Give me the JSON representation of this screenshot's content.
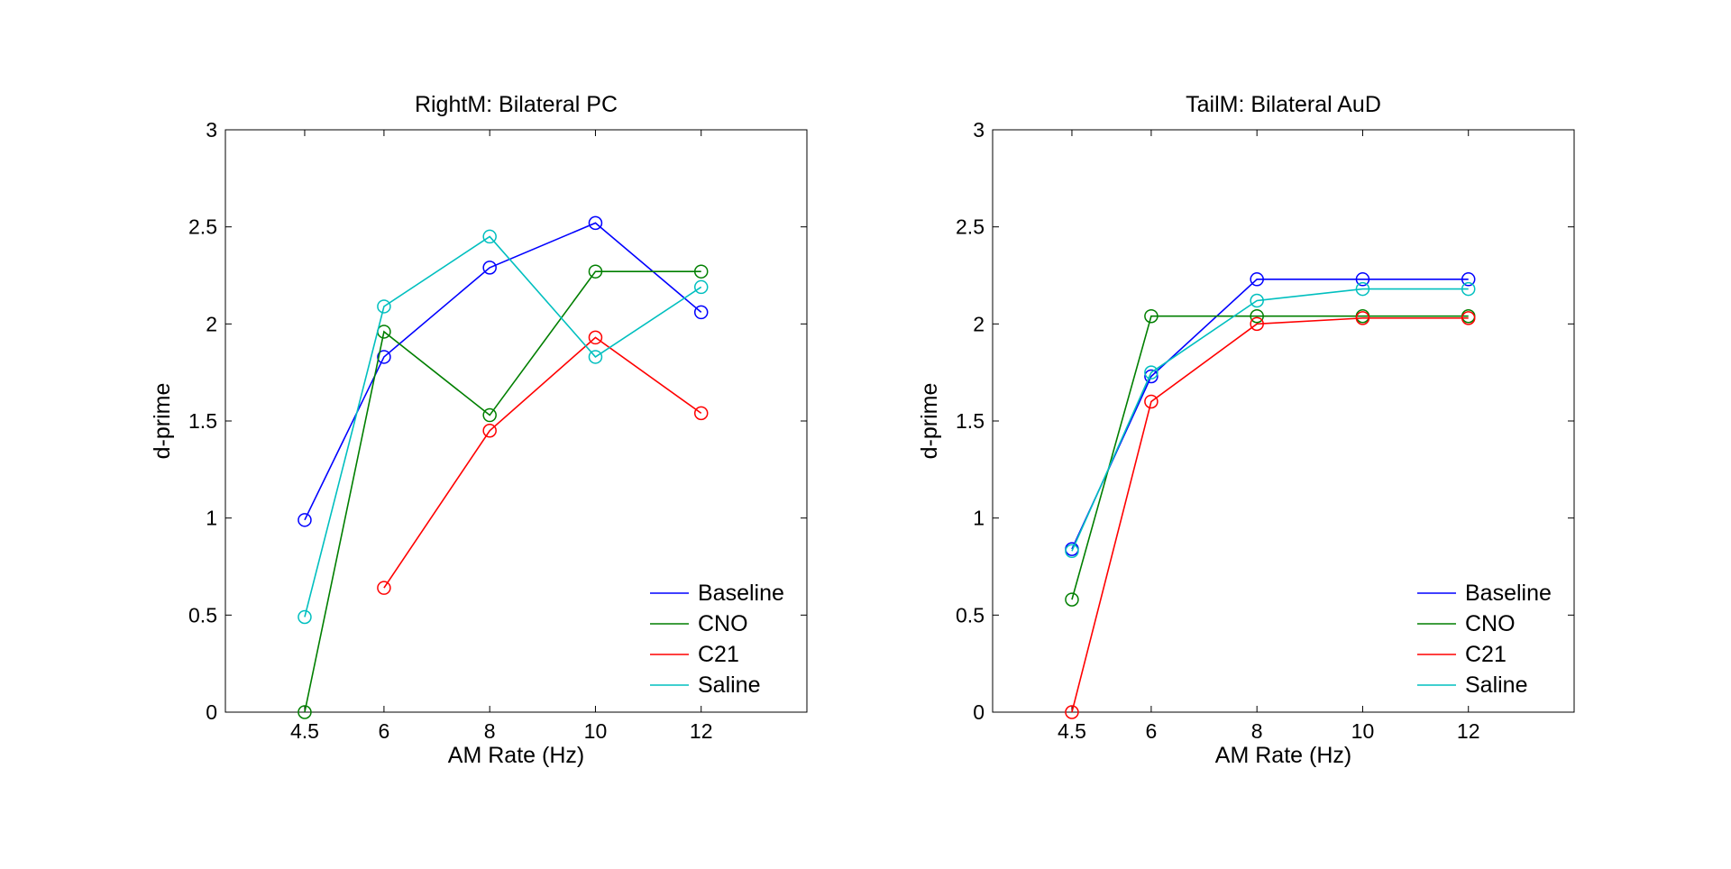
{
  "chart_data": [
    {
      "type": "line",
      "title": "RightM: Bilateral PC",
      "xlabel": "AM Rate (Hz)",
      "ylabel": "d-prime",
      "xlim": [
        3,
        14
      ],
      "ylim": [
        0,
        3
      ],
      "xticks": [
        4.5,
        6,
        8,
        10,
        12
      ],
      "xtick_labels": [
        "4.5",
        "6",
        "8",
        "10",
        "12"
      ],
      "yticks": [
        0,
        0.5,
        1,
        1.5,
        2,
        2.5,
        3
      ],
      "ytick_labels": [
        "0",
        "0.5",
        "1",
        "1.5",
        "2",
        "2.5",
        "3"
      ],
      "grid": false,
      "legend": "bottom-right",
      "x": [
        4.5,
        6,
        8,
        10,
        12
      ],
      "series": [
        {
          "name": "Baseline",
          "color": "#0000ff",
          "values": [
            0.99,
            1.83,
            2.29,
            2.52,
            2.06
          ]
        },
        {
          "name": "CNO",
          "color": "#007f00",
          "values": [
            0.0,
            1.96,
            1.53,
            2.27,
            2.27
          ]
        },
        {
          "name": "C21",
          "color": "#ff0000",
          "values": [
            null,
            0.64,
            1.45,
            1.93,
            1.54
          ]
        },
        {
          "name": "Saline",
          "color": "#00bfbf",
          "values": [
            0.49,
            2.09,
            2.45,
            1.83,
            2.19
          ]
        }
      ]
    },
    {
      "type": "line",
      "title": "TailM: Bilateral AuD",
      "xlabel": "AM Rate (Hz)",
      "ylabel": "d-prime",
      "xlim": [
        3,
        14
      ],
      "ylim": [
        0,
        3
      ],
      "xticks": [
        4.5,
        6,
        8,
        10,
        12
      ],
      "xtick_labels": [
        "4.5",
        "6",
        "8",
        "10",
        "12"
      ],
      "yticks": [
        0,
        0.5,
        1,
        1.5,
        2,
        2.5,
        3
      ],
      "ytick_labels": [
        "0",
        "0.5",
        "1",
        "1.5",
        "2",
        "2.5",
        "3"
      ],
      "grid": false,
      "legend": "bottom-right",
      "x": [
        4.5,
        6,
        8,
        10,
        12
      ],
      "series": [
        {
          "name": "Baseline",
          "color": "#0000ff",
          "values": [
            0.84,
            1.73,
            2.23,
            2.23,
            2.23
          ]
        },
        {
          "name": "CNO",
          "color": "#007f00",
          "values": [
            0.58,
            2.04,
            2.04,
            2.04,
            2.04
          ]
        },
        {
          "name": "C21",
          "color": "#ff0000",
          "values": [
            0.0,
            1.6,
            2.0,
            2.03,
            2.03
          ]
        },
        {
          "name": "Saline",
          "color": "#00bfbf",
          "values": [
            0.83,
            1.75,
            2.12,
            2.18,
            2.18
          ]
        }
      ]
    }
  ]
}
